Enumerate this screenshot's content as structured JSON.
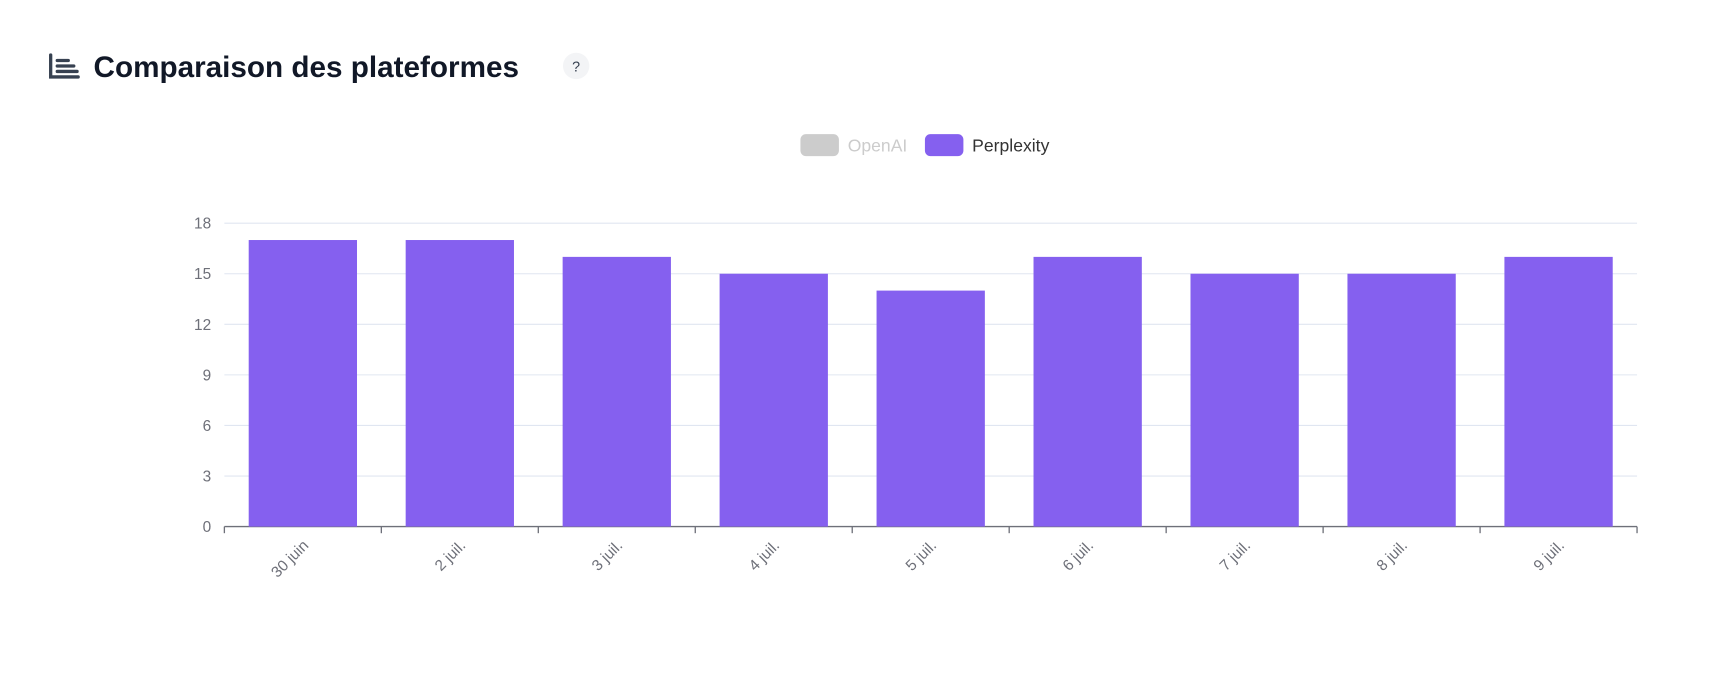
{
  "chart_data": {
    "type": "bar",
    "title": "Comparaison des plateformes",
    "help": "?",
    "categories": [
      "30 juin",
      "2 juil.",
      "3 juil.",
      "4 juil.",
      "5 juil.",
      "6 juil.",
      "7 juil.",
      "8 juil.",
      "9 juil."
    ],
    "series": [
      {
        "name": "OpenAI",
        "hidden": true,
        "values": [
          null,
          null,
          null,
          null,
          null,
          null,
          null,
          null,
          null
        ]
      },
      {
        "name": "Perplexity",
        "color": "#8560ef",
        "values": [
          17,
          17,
          16,
          15,
          14,
          16,
          15,
          15,
          16
        ]
      }
    ],
    "ylim": [
      0,
      18
    ],
    "yticks": [
      0,
      3,
      6,
      9,
      12,
      15,
      18
    ],
    "grid": true
  }
}
